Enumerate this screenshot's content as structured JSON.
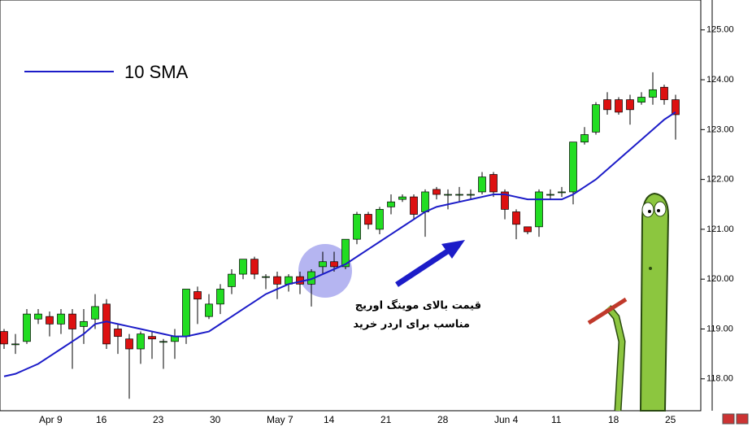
{
  "chart_data": {
    "type": "candlestick",
    "categories": [
      null,
      null,
      null,
      "Apr 9",
      null,
      null,
      null,
      null,
      "16",
      null,
      null,
      null,
      null,
      "23",
      null,
      null,
      null,
      null,
      "30",
      null,
      null,
      null,
      null,
      "May 7",
      null,
      null,
      null,
      null,
      "14",
      null,
      null,
      null,
      null,
      "21",
      null,
      null,
      null,
      null,
      "28",
      null,
      null,
      null,
      null,
      "Jun 4",
      null,
      null,
      null,
      null,
      "11",
      null,
      null,
      null,
      null,
      "18",
      null,
      null,
      null,
      null,
      "25",
      null
    ],
    "open": [
      118.95,
      118.7,
      118.75,
      119.2,
      119.25,
      119.1,
      119.3,
      119.05,
      119.2,
      119.5,
      119.0,
      118.8,
      118.6,
      118.85,
      118.75,
      118.75,
      118.85,
      119.75,
      119.25,
      119.5,
      119.85,
      120.1,
      120.4,
      120.05,
      120.05,
      119.9,
      120.05,
      119.9,
      120.25,
      120.35,
      120.25,
      120.8,
      121.3,
      121.0,
      121.45,
      121.6,
      121.65,
      121.35,
      121.8,
      121.7,
      121.7,
      121.7,
      121.75,
      122.1,
      121.75,
      121.35,
      121.05,
      121.05,
      121.7,
      121.75,
      121.75,
      122.75,
      122.95,
      123.6,
      123.6,
      123.6,
      123.55,
      123.65,
      123.85,
      123.6
    ],
    "high": [
      119.0,
      118.9,
      119.4,
      119.4,
      119.35,
      119.4,
      119.4,
      119.4,
      119.7,
      119.6,
      119.1,
      118.9,
      118.95,
      118.95,
      118.8,
      119.0,
      119.8,
      119.85,
      119.7,
      119.9,
      120.2,
      120.4,
      120.45,
      120.1,
      120.15,
      120.1,
      120.15,
      120.2,
      120.55,
      120.55,
      120.8,
      121.35,
      121.35,
      121.45,
      121.7,
      121.7,
      121.7,
      121.8,
      121.85,
      121.8,
      121.85,
      121.8,
      122.15,
      122.15,
      121.8,
      121.4,
      121.05,
      121.8,
      121.8,
      121.85,
      122.75,
      123.05,
      123.55,
      123.75,
      123.65,
      123.7,
      123.75,
      124.15,
      123.9,
      123.7
    ],
    "low": [
      118.6,
      118.5,
      118.7,
      119.1,
      118.85,
      118.9,
      118.2,
      118.7,
      119.0,
      118.6,
      118.5,
      117.6,
      118.3,
      118.4,
      118.2,
      118.4,
      118.7,
      119.1,
      119.2,
      119.3,
      119.7,
      120.0,
      120.0,
      119.8,
      119.6,
      119.75,
      119.7,
      119.45,
      120.1,
      120.15,
      120.2,
      120.7,
      121.0,
      120.9,
      121.3,
      121.55,
      121.2,
      120.85,
      121.6,
      121.4,
      121.55,
      121.6,
      121.7,
      121.65,
      121.2,
      120.8,
      120.9,
      120.85,
      121.6,
      121.65,
      121.5,
      122.7,
      122.9,
      123.3,
      123.3,
      123.1,
      123.5,
      123.5,
      123.5,
      122.8
    ],
    "close": [
      118.7,
      118.7,
      119.3,
      119.3,
      119.1,
      119.3,
      119.0,
      119.15,
      119.45,
      118.7,
      118.85,
      118.6,
      118.9,
      118.8,
      118.75,
      118.85,
      119.8,
      119.6,
      119.5,
      119.8,
      120.1,
      120.4,
      120.1,
      120.05,
      119.9,
      120.05,
      119.9,
      120.15,
      120.35,
      120.25,
      120.8,
      121.3,
      121.1,
      121.4,
      121.55,
      121.65,
      121.3,
      121.75,
      121.7,
      121.7,
      121.7,
      121.7,
      122.05,
      121.75,
      121.4,
      121.1,
      120.95,
      121.75,
      121.7,
      121.75,
      122.75,
      122.9,
      123.5,
      123.4,
      123.35,
      123.4,
      123.65,
      123.8,
      123.6,
      123.3
    ],
    "up_color": "#22dd22",
    "down_color": "#dd1111",
    "sma": {
      "name": "10 SMA",
      "color": "#1c1cc8",
      "values": [
        118.05,
        118.1,
        118.2,
        118.3,
        118.45,
        118.6,
        118.75,
        118.9,
        119.1,
        119.15,
        119.1,
        119.05,
        119.0,
        118.95,
        118.9,
        118.85,
        118.85,
        118.9,
        118.95,
        119.1,
        119.25,
        119.4,
        119.55,
        119.7,
        119.8,
        119.9,
        119.95,
        120.0,
        120.1,
        120.2,
        120.3,
        120.45,
        120.6,
        120.75,
        120.9,
        121.05,
        121.2,
        121.35,
        121.45,
        121.5,
        121.55,
        121.6,
        121.65,
        121.7,
        121.7,
        121.65,
        121.6,
        121.6,
        121.6,
        121.6,
        121.7,
        121.85,
        122.0,
        122.2,
        122.4,
        122.6,
        122.8,
        123.0,
        123.2,
        123.35
      ]
    },
    "ylim": [
      117.36,
      125.6
    ],
    "yticks": [
      {
        "value": 118,
        "label": "118.00"
      },
      {
        "value": 119,
        "label": "119.00"
      },
      {
        "value": 120,
        "label": "120.00"
      },
      {
        "value": 121,
        "label": "121.00"
      },
      {
        "value": 122,
        "label": "122.00"
      },
      {
        "value": 123,
        "label": "123.00"
      },
      {
        "value": 124,
        "label": "124.00"
      },
      {
        "value": 125,
        "label": "125.00"
      }
    ],
    "grid": false,
    "annotation": [
      "قیمت بالای موینگ اوریج",
      "مناسب برای اردر خرید"
    ]
  }
}
